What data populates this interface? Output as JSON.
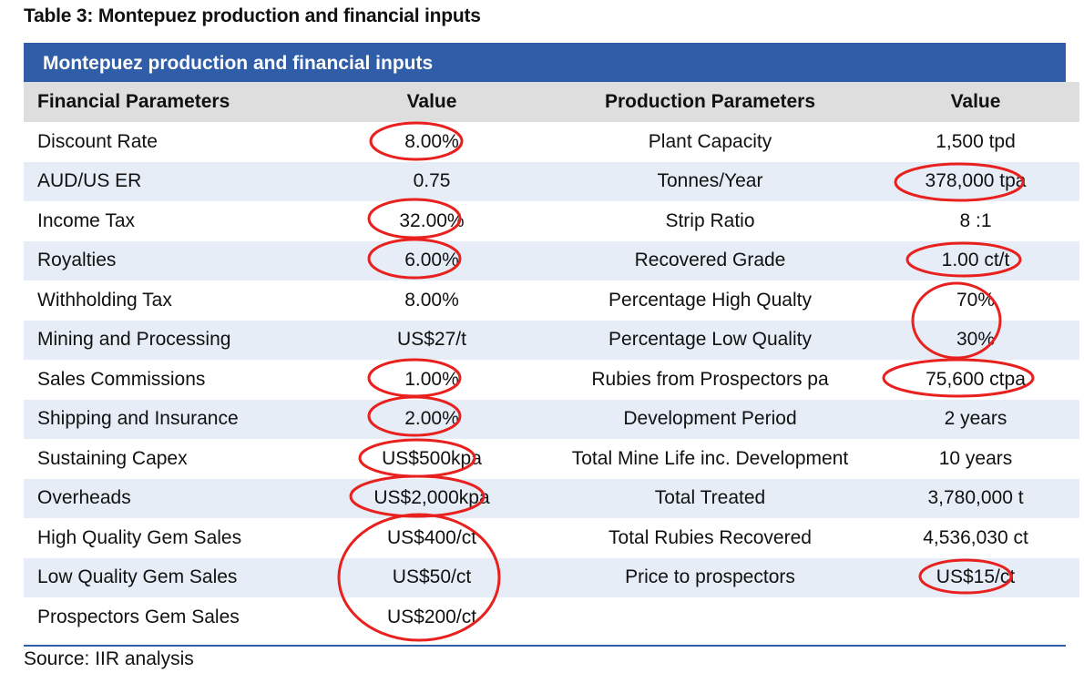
{
  "caption": "Table 3: Montepuez production and financial inputs",
  "banner": "Montepuez production and financial inputs",
  "headers": [
    "Financial Parameters",
    "Value",
    "Production Parameters",
    "Value"
  ],
  "rows": [
    [
      "Discount Rate",
      "8.00%",
      "Plant Capacity",
      "1,500 tpd"
    ],
    [
      "AUD/US ER",
      "0.75",
      "Tonnes/Year",
      "378,000 tpa"
    ],
    [
      "Income Tax",
      "32.00%",
      "Strip Ratio",
      "8 :1"
    ],
    [
      "Royalties",
      "6.00%",
      "Recovered Grade",
      "1.00 ct/t"
    ],
    [
      "Withholding Tax",
      "8.00%",
      "Percentage High Qualty",
      "70%"
    ],
    [
      "Mining and Processing",
      "US$27/t",
      "Percentage Low Quality",
      "30%"
    ],
    [
      "Sales Commissions",
      "1.00%",
      "Rubies from Prospectors pa",
      "75,600 ctpa"
    ],
    [
      "Shipping and Insurance",
      "2.00%",
      "Development Period",
      "2 years"
    ],
    [
      "Sustaining Capex",
      "US$500kpa",
      "Total Mine Life inc. Development",
      "10 years"
    ],
    [
      "Overheads",
      "US$2,000kpa",
      "Total Treated",
      "3,780,000 t"
    ],
    [
      "High Quality Gem Sales",
      "US$400/ct",
      "Total Rubies Recovered",
      "4,536,030 ct"
    ],
    [
      "Low Quality Gem Sales",
      "US$50/ct",
      "Price to prospectors",
      "US$15/ct"
    ],
    [
      "Prospectors Gem Sales",
      "US$200/ct",
      "",
      ""
    ]
  ],
  "source": "Source: IIR analysis",
  "colors": {
    "banner": "#2f5da7",
    "header_bg": "#dedede",
    "stripe": "#e6edf6",
    "annotation": "#e8201e"
  }
}
